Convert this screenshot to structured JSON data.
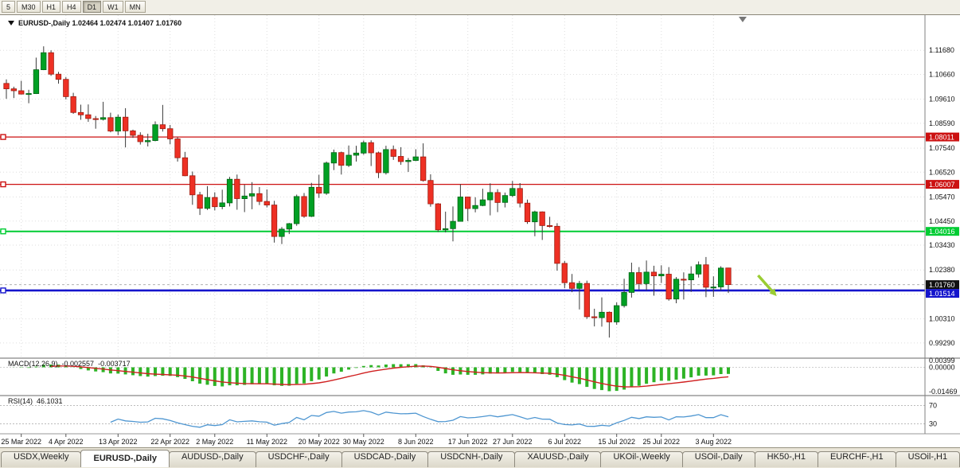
{
  "toolbar": {
    "timeframes": [
      {
        "label": "5",
        "active": false
      },
      {
        "label": "M30",
        "active": false
      },
      {
        "label": "H1",
        "active": false
      },
      {
        "label": "H4",
        "active": false
      },
      {
        "label": "D1",
        "active": true
      },
      {
        "label": "W1",
        "active": false
      },
      {
        "label": "MN",
        "active": false
      }
    ]
  },
  "chart": {
    "title_text": "EURUSD-,Daily 1.02464 1.02474 1.01407 1.01760"
  },
  "indicators": {
    "macd": {
      "name": "MACD(12,26,9)",
      "macd_value": "-0.002557",
      "signal_value": "-0.003717",
      "ticks": [
        {
          "label": "0.00399",
          "value": 0.00399
        },
        {
          "label": "0.00000",
          "value": 0
        },
        {
          "label": "-0.01469",
          "value": -0.01469
        }
      ],
      "ylim": [
        -0.0165,
        0.005
      ],
      "histogram_color": "#2db325",
      "signal_color": "#d02020"
    },
    "rsi": {
      "name": "RSI(14)",
      "value": "46.1031",
      "levels": [
        {
          "label": "70",
          "value": 70
        },
        {
          "label": "30",
          "value": 30
        }
      ],
      "ylim": [
        10,
        90
      ],
      "line_color": "#4e96d1"
    }
  },
  "chart_data": {
    "type": "candlestick",
    "symbol": "EURUSD-,Daily",
    "ohlc_display": {
      "open": "1.02464",
      "high": "1.02474",
      "low": "1.01407",
      "close": "1.01760"
    },
    "price_axis": {
      "ylim": [
        0.9868,
        1.1317
      ],
      "ticks": [
        "1.11680",
        "1.10660",
        "1.09610",
        "1.08590",
        "1.07540",
        "1.06520",
        "1.05470",
        "1.04450",
        "1.03430",
        "1.02380",
        "1.01360",
        "1.00310",
        "0.99290"
      ]
    },
    "x_labels": [
      {
        "index": 2,
        "label": "25 Mar 2022"
      },
      {
        "index": 8,
        "label": "4 Apr 2022"
      },
      {
        "index": 15,
        "label": "13 Apr 2022"
      },
      {
        "index": 22,
        "label": "22 Apr 2022"
      },
      {
        "index": 28,
        "label": "2 May 2022"
      },
      {
        "index": 35,
        "label": "11 May 2022"
      },
      {
        "index": 42,
        "label": "20 May 2022"
      },
      {
        "index": 48,
        "label": "30 May 2022"
      },
      {
        "index": 55,
        "label": "8 Jun 2022"
      },
      {
        "index": 62,
        "label": "17 Jun 2022"
      },
      {
        "index": 68,
        "label": "27 Jun 2022"
      },
      {
        "index": 75,
        "label": "6 Jul 2022"
      },
      {
        "index": 82,
        "label": "15 Jul 2022"
      },
      {
        "index": 88,
        "label": "25 Jul 2022"
      },
      {
        "index": 95,
        "label": "3 Aug 2022"
      }
    ],
    "candles": [
      [
        1.1028,
        1.1045,
        1.0963,
        1.1005
      ],
      [
        1.1005,
        1.1014,
        1.0966,
        1.0997
      ],
      [
        1.0997,
        1.1039,
        1.0981,
        1.0983
      ],
      [
        1.0983,
        1.1001,
        1.0944,
        1.0985
      ],
      [
        1.0985,
        1.1137,
        1.0983,
        1.1086
      ],
      [
        1.1086,
        1.1185,
        1.1084,
        1.1158
      ],
      [
        1.1158,
        1.1168,
        1.106,
        1.1067
      ],
      [
        1.1067,
        1.1077,
        1.1027,
        1.1045
      ],
      [
        1.1045,
        1.1055,
        1.096,
        1.0972
      ],
      [
        1.0972,
        1.0988,
        1.0899,
        1.0905
      ],
      [
        1.0905,
        1.0938,
        1.0874,
        1.0895
      ],
      [
        1.0895,
        1.0939,
        1.0865,
        1.0879
      ],
      [
        1.0879,
        1.089,
        1.0836,
        1.0876
      ],
      [
        1.0876,
        1.095,
        1.0871,
        1.0883
      ],
      [
        1.0883,
        1.0904,
        1.0821,
        1.0826
      ],
      [
        1.0826,
        1.0896,
        1.0809,
        1.0885
      ],
      [
        1.0885,
        1.0923,
        1.0757,
        1.0827
      ],
      [
        1.0827,
        1.0832,
        1.0797,
        1.0808
      ],
      [
        1.0808,
        1.0821,
        1.0769,
        1.0781
      ],
      [
        1.0781,
        1.0815,
        1.0761,
        1.0786
      ],
      [
        1.0786,
        1.0867,
        1.0783,
        1.0853
      ],
      [
        1.0853,
        1.0937,
        1.0824,
        1.0836
      ],
      [
        1.0836,
        1.0852,
        1.077,
        1.0793
      ],
      [
        1.0793,
        1.08,
        1.0697,
        1.0713
      ],
      [
        1.0713,
        1.0738,
        1.0635,
        1.0637
      ],
      [
        1.0637,
        1.0655,
        1.0514,
        1.0556
      ],
      [
        1.0556,
        1.0569,
        1.0471,
        1.0499
      ],
      [
        1.0499,
        1.0593,
        1.0492,
        1.0545
      ],
      [
        1.0545,
        1.0567,
        1.049,
        1.0506
      ],
      [
        1.0506,
        1.0578,
        1.0495,
        1.0522
      ],
      [
        1.0522,
        1.0632,
        1.0507,
        1.0622
      ],
      [
        1.0622,
        1.0642,
        1.0493,
        1.054
      ],
      [
        1.054,
        1.0599,
        1.0483,
        1.0551
      ],
      [
        1.0551,
        1.061,
        1.0495,
        1.0561
      ],
      [
        1.0561,
        1.0589,
        1.0513,
        1.0528
      ],
      [
        1.0528,
        1.0579,
        1.0503,
        1.0513
      ],
      [
        1.0513,
        1.0531,
        1.0354,
        1.038
      ],
      [
        1.038,
        1.042,
        1.0348,
        1.0411
      ],
      [
        1.0411,
        1.0437,
        1.039,
        1.0434
      ],
      [
        1.0434,
        1.0557,
        1.0425,
        1.0549
      ],
      [
        1.0549,
        1.0564,
        1.0459,
        1.0465
      ],
      [
        1.0465,
        1.0607,
        1.0462,
        1.0588
      ],
      [
        1.0588,
        1.0641,
        1.0543,
        1.0563
      ],
      [
        1.0563,
        1.0697,
        1.0556,
        1.0691
      ],
      [
        1.0691,
        1.0748,
        1.0661,
        1.0735
      ],
      [
        1.0735,
        1.0739,
        1.0642,
        1.0681
      ],
      [
        1.0681,
        1.0765,
        1.0674,
        1.0724
      ],
      [
        1.0724,
        1.0764,
        1.0697,
        1.0733
      ],
      [
        1.0733,
        1.0786,
        1.0726,
        1.0777
      ],
      [
        1.0777,
        1.0787,
        1.0678,
        1.0734
      ],
      [
        1.0734,
        1.0739,
        1.0627,
        1.065
      ],
      [
        1.065,
        1.0764,
        1.0642,
        1.0748
      ],
      [
        1.0748,
        1.0765,
        1.0704,
        1.0719
      ],
      [
        1.0719,
        1.0758,
        1.0683,
        1.0697
      ],
      [
        1.0697,
        1.0712,
        1.0653,
        1.0702
      ],
      [
        1.0702,
        1.0749,
        1.0699,
        1.0717
      ],
      [
        1.0717,
        1.0774,
        1.0612,
        1.0617
      ],
      [
        1.0617,
        1.0643,
        1.0506,
        1.0518
      ],
      [
        1.0518,
        1.0521,
        1.0399,
        1.0408
      ],
      [
        1.0408,
        1.0485,
        1.0397,
        1.0413
      ],
      [
        1.0413,
        1.0507,
        1.0359,
        1.0444
      ],
      [
        1.0444,
        1.0601,
        1.0444,
        1.0547
      ],
      [
        1.0547,
        1.0548,
        1.0445,
        1.0498
      ],
      [
        1.0498,
        1.0546,
        1.0482,
        1.0511
      ],
      [
        1.0511,
        1.0582,
        1.0508,
        1.0535
      ],
      [
        1.0535,
        1.0605,
        1.0469,
        1.0566
      ],
      [
        1.0566,
        1.058,
        1.0483,
        1.0524
      ],
      [
        1.0524,
        1.0566,
        1.0503,
        1.0553
      ],
      [
        1.0553,
        1.0615,
        1.0547,
        1.0583
      ],
      [
        1.0583,
        1.0606,
        1.0503,
        1.0521
      ],
      [
        1.0521,
        1.0536,
        1.0433,
        1.0442
      ],
      [
        1.0442,
        1.0489,
        1.0381,
        1.0484
      ],
      [
        1.0484,
        1.0486,
        1.0365,
        1.0426
      ],
      [
        1.0426,
        1.0463,
        1.0418,
        1.0423
      ],
      [
        1.0423,
        1.0436,
        1.0235,
        1.0266
      ],
      [
        1.0266,
        1.0276,
        1.0161,
        1.0184
      ],
      [
        1.0184,
        1.0221,
        1.0144,
        1.016
      ],
      [
        1.016,
        1.0192,
        1.0071,
        1.0181
      ],
      [
        1.0181,
        1.0193,
        1.0031,
        1.004
      ],
      [
        1.004,
        1.0074,
        0.9999,
        1.0036
      ],
      [
        1.0036,
        1.0122,
        0.9998,
        1.0059
      ],
      [
        1.0059,
        1.0062,
        0.9952,
        1.0018
      ],
      [
        1.0018,
        1.0101,
        1.0006,
        1.0087
      ],
      [
        1.0087,
        1.0201,
        1.0079,
        1.0143
      ],
      [
        1.0143,
        1.0269,
        1.0121,
        1.0227
      ],
      [
        1.0227,
        1.025,
        1.0155,
        1.018
      ],
      [
        1.018,
        1.0278,
        1.0151,
        1.0229
      ],
      [
        1.0229,
        1.0256,
        1.0129,
        1.0213
      ],
      [
        1.0213,
        1.0258,
        1.0183,
        1.022
      ],
      [
        1.022,
        1.025,
        1.0108,
        1.0115
      ],
      [
        1.0115,
        1.0208,
        1.0097,
        1.0199
      ],
      [
        1.0199,
        1.0228,
        1.0113,
        1.0196
      ],
      [
        1.0196,
        1.0254,
        1.0145,
        1.0221
      ],
      [
        1.0221,
        1.0274,
        1.0206,
        1.026
      ],
      [
        1.026,
        1.0293,
        1.0123,
        1.0165
      ],
      [
        1.0165,
        1.0211,
        1.0124,
        1.0166
      ],
      [
        1.0166,
        1.0254,
        1.0151,
        1.0246
      ],
      [
        1.02464,
        1.02474,
        1.01407,
        1.0176
      ]
    ],
    "hlines": [
      {
        "label": "1.08011",
        "value": 1.08011,
        "color": "#cc1111",
        "width": 1.3,
        "style": "solid",
        "marker": true
      },
      {
        "label": "1.06007",
        "value": 1.06007,
        "color": "#cc1111",
        "width": 1.3,
        "style": "solid",
        "marker": true
      },
      {
        "label": "1.04016",
        "value": 1.04016,
        "color": "#00cc33",
        "width": 2,
        "style": "solid",
        "marker": true
      },
      {
        "label": "1.01514",
        "value": 1.01514,
        "color": "#1414cc",
        "width": 2.6,
        "style": "solid",
        "marker": true
      }
    ],
    "bid": {
      "label": "1.01760",
      "value": 1.0176,
      "badge_color": "#111111",
      "line_color": "#b0b0b0",
      "style": "dashed"
    },
    "annotations": [
      {
        "type": "arrow",
        "color": "#9ACD32",
        "from_index": 101,
        "from_price": 1.0215,
        "to_index": 103.5,
        "to_price": 1.0127
      }
    ],
    "colors": {
      "up": "#00A024",
      "up_border": "#006414",
      "down": "#ee3024",
      "down_border": "#9e1c10",
      "wick": "#3a3a3a",
      "grid": "#dedede"
    }
  },
  "tabs": [
    {
      "label": "USDX,Weekly",
      "active": false
    },
    {
      "label": "EURUSD-,Daily",
      "active": true
    },
    {
      "label": "AUDUSD-,Daily",
      "active": false
    },
    {
      "label": "USDCHF-,Daily",
      "active": false
    },
    {
      "label": "USDCAD-,Daily",
      "active": false
    },
    {
      "label": "USDCNH-,Daily",
      "active": false
    },
    {
      "label": "XAUUSD-,Daily",
      "active": false
    },
    {
      "label": "UKOil-,Weekly",
      "active": false
    },
    {
      "label": "USOil-,Daily",
      "active": false
    },
    {
      "label": "HK50-,H1",
      "active": false
    },
    {
      "label": "EURCHF-,H1",
      "active": false
    },
    {
      "label": "USOil-,H1",
      "active": false
    }
  ]
}
